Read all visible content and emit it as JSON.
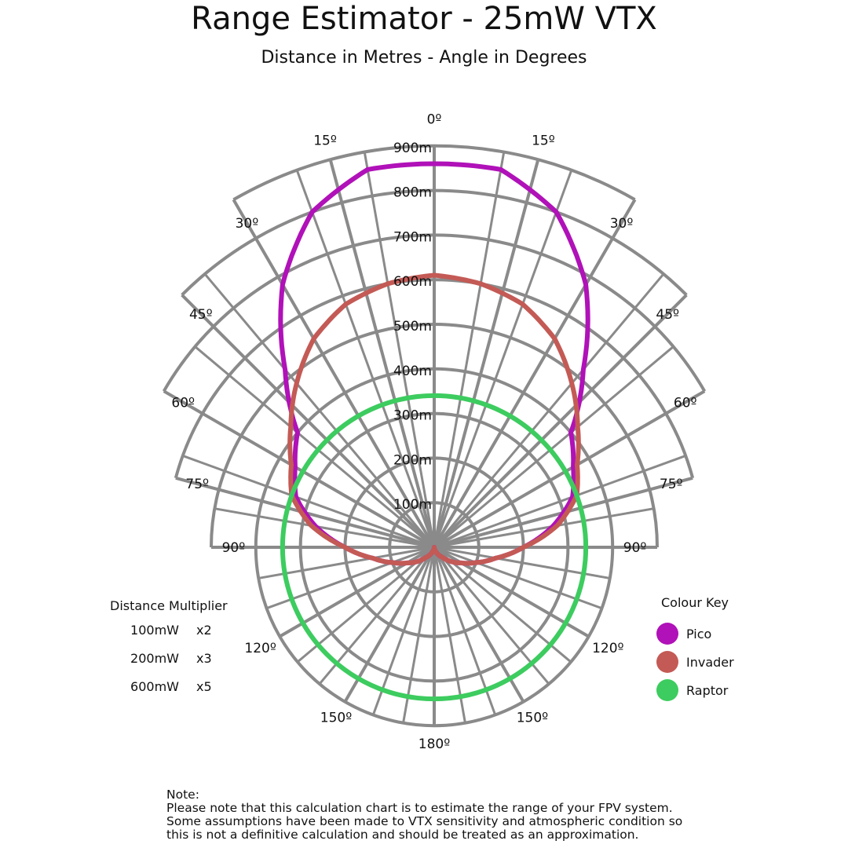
{
  "page": {
    "title": "Range Estimator - 25mW VTX",
    "subtitle": "Distance in Metres - Angle in Degrees"
  },
  "chart_data": {
    "type": "polar-line",
    "title": "Range Estimator - 25mW VTX",
    "subtitle": "Distance in Metres - Angle in Degrees",
    "radial_unit": "m",
    "radial_ticks": [
      100,
      200,
      300,
      400,
      500,
      600,
      700,
      800,
      900
    ],
    "radial_tick_labels": [
      "100m",
      "200m",
      "300m",
      "400m",
      "500m",
      "600m",
      "700m",
      "800m",
      "900m"
    ],
    "angle_ticks": [
      0,
      15,
      30,
      45,
      60,
      75,
      90,
      120,
      150,
      180
    ],
    "angle_tick_labels": [
      "0º",
      "15º",
      "30º",
      "45º",
      "60º",
      "75º",
      "90º",
      "120º",
      "150º",
      "180º"
    ],
    "outer_limit": [
      {
        "angle": 0,
        "r": 900
      },
      {
        "angle": 15,
        "r": 900
      },
      {
        "angle": 30,
        "r": 800
      },
      {
        "angle": 45,
        "r": 700
      },
      {
        "angle": 60,
        "r": 600
      },
      {
        "angle": 75,
        "r": 500
      },
      {
        "angle": 90,
        "r": 400
      },
      {
        "angle": 120,
        "r": 400
      },
      {
        "angle": 150,
        "r": 400
      },
      {
        "angle": 180,
        "r": 400
      }
    ],
    "series": [
      {
        "name": "Pico",
        "color": "#b011b8",
        "points": [
          {
            "angle": 0,
            "r": 860
          },
          {
            "angle": 10,
            "r": 860
          },
          {
            "angle": 20,
            "r": 800
          },
          {
            "angle": 30,
            "r": 680
          },
          {
            "angle": 40,
            "r": 520
          },
          {
            "angle": 50,
            "r": 400
          },
          {
            "angle": 60,
            "r": 360
          },
          {
            "angle": 70,
            "r": 330
          },
          {
            "angle": 80,
            "r": 270
          },
          {
            "angle": 90,
            "r": 200
          },
          {
            "angle": 100,
            "r": 140
          },
          {
            "angle": 110,
            "r": 100
          },
          {
            "angle": 120,
            "r": 70
          },
          {
            "angle": 130,
            "r": 50
          },
          {
            "angle": 140,
            "r": 30
          },
          {
            "angle": 150,
            "r": 20
          },
          {
            "angle": 160,
            "r": 10
          },
          {
            "angle": 170,
            "r": 5
          },
          {
            "angle": 180,
            "r": 0
          }
        ]
      },
      {
        "name": "Invader",
        "color": "#c45a55",
        "points": [
          {
            "angle": 0,
            "r": 610
          },
          {
            "angle": 10,
            "r": 600
          },
          {
            "angle": 20,
            "r": 580
          },
          {
            "angle": 30,
            "r": 540
          },
          {
            "angle": 40,
            "r": 480
          },
          {
            "angle": 50,
            "r": 420
          },
          {
            "angle": 60,
            "r": 370
          },
          {
            "angle": 70,
            "r": 340
          },
          {
            "angle": 80,
            "r": 280
          },
          {
            "angle": 90,
            "r": 200
          },
          {
            "angle": 100,
            "r": 140
          },
          {
            "angle": 110,
            "r": 100
          },
          {
            "angle": 120,
            "r": 70
          },
          {
            "angle": 130,
            "r": 50
          },
          {
            "angle": 140,
            "r": 30
          },
          {
            "angle": 150,
            "r": 20
          },
          {
            "angle": 160,
            "r": 10
          },
          {
            "angle": 170,
            "r": 5
          },
          {
            "angle": 180,
            "r": 0
          }
        ]
      },
      {
        "name": "Raptor",
        "color": "#3dcc5f",
        "points": [
          {
            "angle": 0,
            "r": 340
          },
          {
            "angle": 90,
            "r": 340
          },
          {
            "angle": 180,
            "r": 340
          }
        ]
      }
    ],
    "legend": {
      "title": "Colour Key",
      "placement": "bottom-right"
    }
  },
  "multiplier": {
    "title": "Distance Multiplier",
    "rows": [
      {
        "power": "100mW",
        "factor": "x2"
      },
      {
        "power": "200mW",
        "factor": "x3"
      },
      {
        "power": "600mW",
        "factor": "x5"
      }
    ]
  },
  "legend": {
    "title": "Colour Key",
    "items": [
      {
        "label": "Pico",
        "color": "#b011b8"
      },
      {
        "label": "Invader",
        "color": "#c45a55"
      },
      {
        "label": "Raptor",
        "color": "#3dcc5f"
      }
    ]
  },
  "note": {
    "heading": "Note:",
    "lines": [
      "Please note that this calculation chart is to estimate the range of your FPV system.",
      "Some assumptions have been made to VTX sensitivity and atmospheric condition so",
      "this is not a definitive calculation and should be treated as an approximation."
    ]
  }
}
